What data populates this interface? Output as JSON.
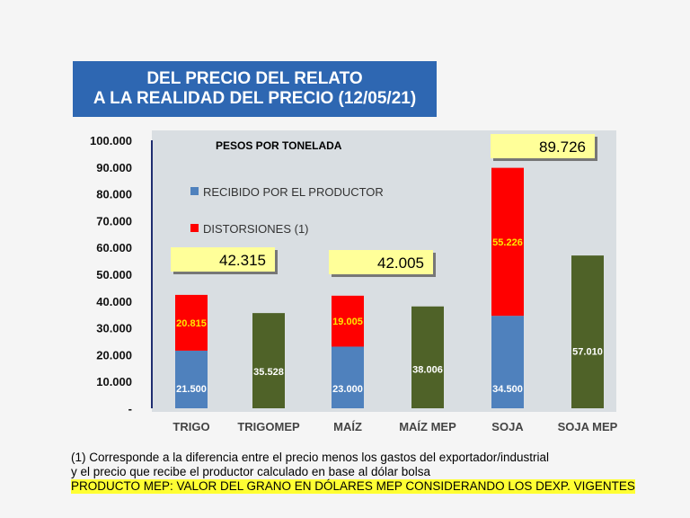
{
  "title": {
    "line1": "DEL PRECIO DEL RELATO",
    "line2": "A LA REALIDAD DEL  PRECIO (12/05/21)"
  },
  "colors": {
    "received": "#4f81bd",
    "distortion": "#ff0000",
    "mep": "#4f6228",
    "plot_bg": "#d9dee2",
    "callout_bg": "#ffff99",
    "title_bg": "#2e67b2"
  },
  "chart_data": {
    "type": "bar",
    "stacked": true,
    "header": "PESOS POR TONELADA",
    "categories": [
      "TRIGO",
      "TRIGOMEP",
      "MAÍZ",
      "MAÍZ MEP",
      "SOJA",
      "SOJA MEP"
    ],
    "series": [
      {
        "name": "RECIBIDO POR EL PRODUCTOR",
        "values": [
          21500,
          null,
          23000,
          null,
          34500,
          null
        ],
        "labels": [
          "21.500",
          null,
          "23.000",
          null,
          "34.500",
          null
        ]
      },
      {
        "name": "DISTORSIONES (1)",
        "values": [
          20815,
          null,
          19005,
          null,
          55226,
          null
        ],
        "labels": [
          "20.815",
          null,
          "19.005",
          null,
          "55.226",
          null
        ]
      },
      {
        "name": "MEP",
        "values": [
          null,
          35528,
          null,
          38006,
          null,
          57010
        ],
        "labels": [
          null,
          "35.528",
          null,
          "38.006",
          null,
          "57.010"
        ]
      }
    ],
    "totals": [
      {
        "category": "TRIGO",
        "label": "42.315"
      },
      {
        "category": "MAÍZ",
        "label": "42.005"
      },
      {
        "category": "SOJA",
        "label": "89.726"
      }
    ],
    "yticks": [
      "-",
      "10.000",
      "20.000",
      "30.000",
      "40.000",
      "50.000",
      "60.000",
      "70.000",
      "80.000",
      "90.000",
      "100.000"
    ],
    "ylim": [
      0,
      100000
    ],
    "grid": false,
    "legend_position": "upper-left"
  },
  "footnote": {
    "line1": "(1)   Corresponde a la diferencia entre el precio menos los gastos del exportador/industrial",
    "line2": "y el precio que recibe el productor calculado en base al dólar bolsa",
    "mep_note": "PRODUCTO MEP: VALOR DEL GRANO EN DÓLARES MEP CONSIDERANDO LOS DEXP. VIGENTES"
  }
}
